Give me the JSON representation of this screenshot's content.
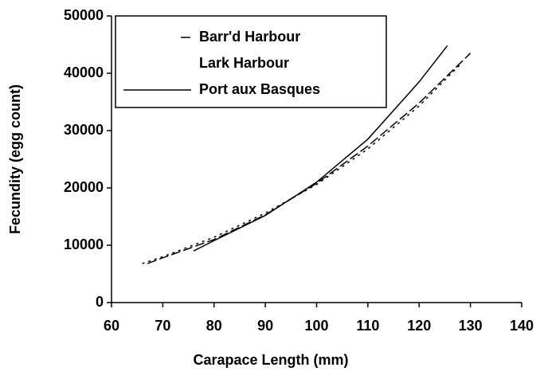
{
  "chart_data": {
    "type": "line",
    "xlabel": "Carapace Length (mm)",
    "ylabel": "Fecundity (egg count)",
    "xlim": [
      60,
      140
    ],
    "xticks": [
      60,
      70,
      80,
      90,
      100,
      110,
      120,
      130,
      140
    ],
    "ylim": [
      0,
      50000
    ],
    "yticks": [
      0,
      10000,
      20000,
      30000,
      40000,
      50000
    ],
    "legend": "upper left",
    "series": [
      {
        "name": "Barr'd Harbour",
        "color": "#000000",
        "style": "dashed",
        "x": [
          67,
          70,
          80,
          90,
          100,
          110,
          120,
          130
        ],
        "values": [
          6800,
          7800,
          11000,
          15300,
          20800,
          27300,
          34800,
          43500
        ]
      },
      {
        "name": "Lark Harbour",
        "color": "#000000",
        "style": "dotted",
        "x": [
          66,
          70,
          80,
          90,
          100,
          110,
          120,
          128
        ],
        "values": [
          6800,
          8000,
          11400,
          15600,
          20600,
          26800,
          34300,
          41500
        ]
      },
      {
        "name": "Port aux Basques",
        "color": "#000000",
        "style": "solid",
        "x": [
          76,
          80,
          90,
          100,
          110,
          120,
          125.5
        ],
        "values": [
          9000,
          10800,
          15200,
          21000,
          28500,
          38500,
          44800
        ]
      }
    ]
  }
}
